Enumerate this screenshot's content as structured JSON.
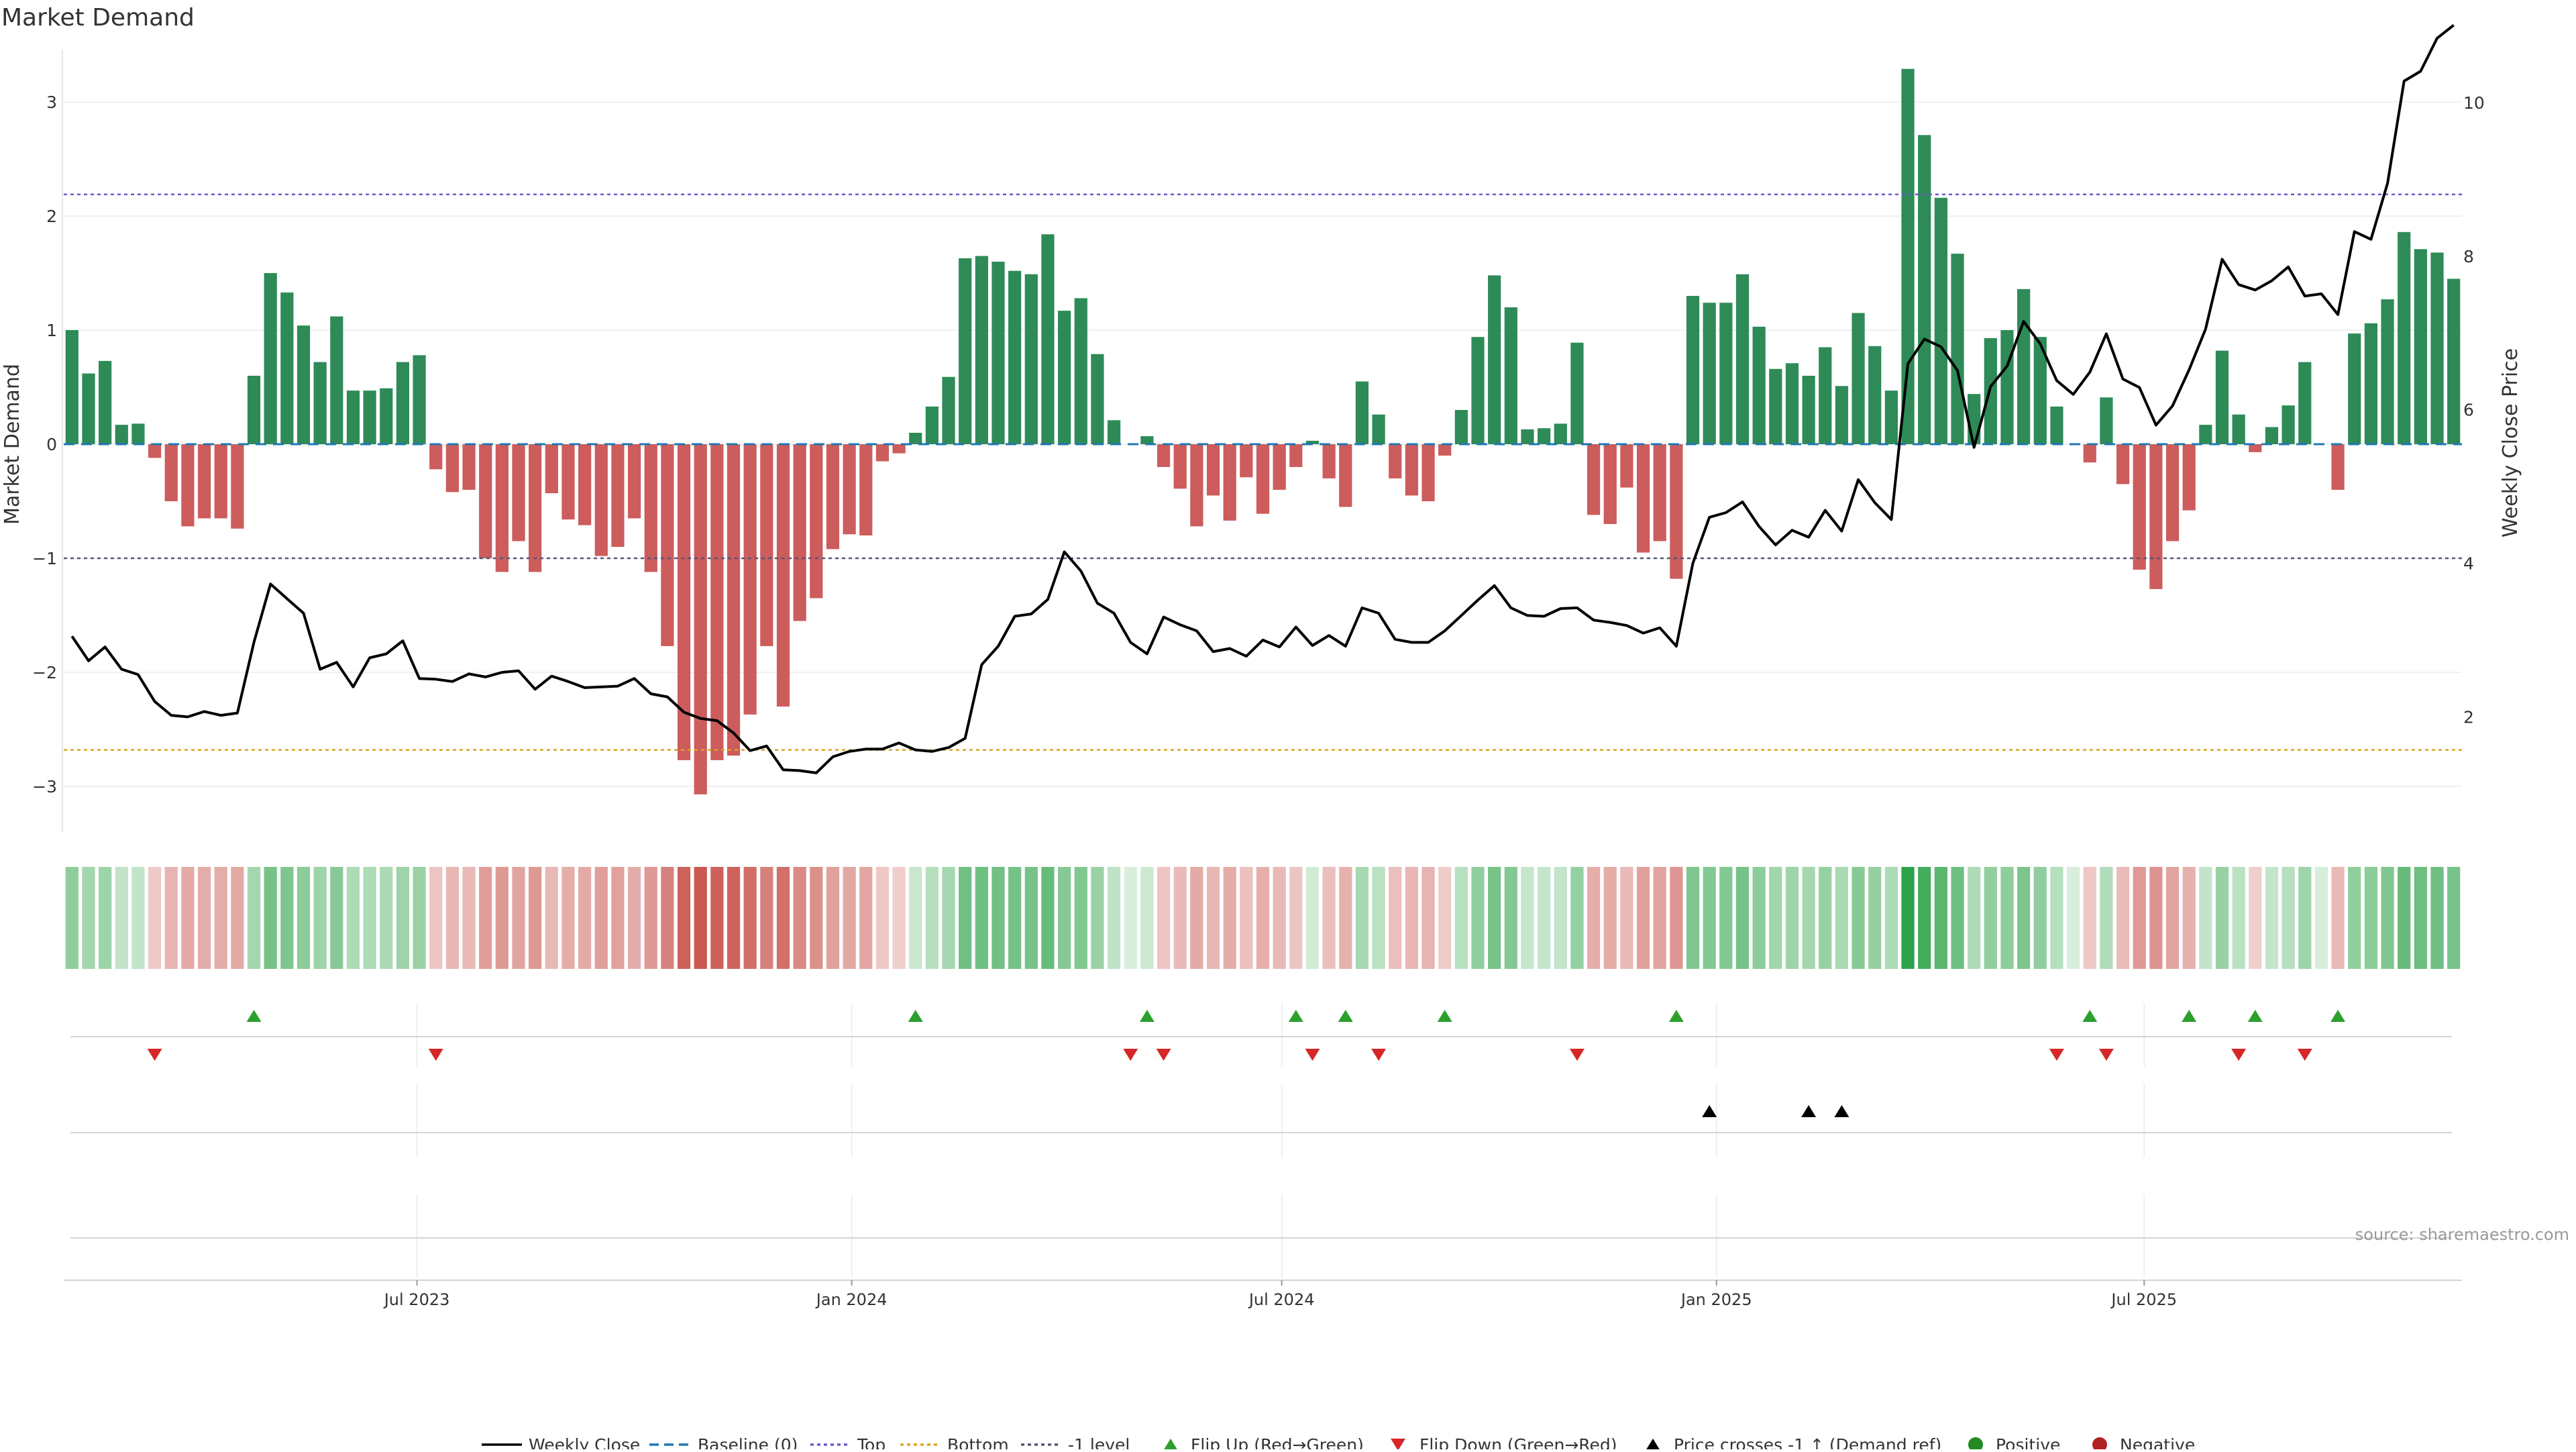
{
  "chart_data": {
    "type": "bar",
    "title": "Market Demand",
    "ylabel_left": "Market Demand",
    "ylabel_right": "Weekly Close Price",
    "ylim_left": [
      -3.4,
      3.6
    ],
    "ylim_right": [
      0.5,
      10.9
    ],
    "yticks_left": [
      3,
      2,
      1,
      0,
      -1,
      -2,
      -3
    ],
    "ytick_labels_left": [
      "3",
      "2",
      "1",
      "0",
      "−1",
      "−2",
      "−3"
    ],
    "yticks_right": [
      10,
      8,
      6,
      4,
      2
    ],
    "ytick_labels_right": [
      "10",
      "8",
      "6",
      "4",
      "2"
    ],
    "levels": {
      "top": 2.19,
      "bottom": -2.68,
      "minus_one": -1.0,
      "baseline": 0
    },
    "x_start": "2023-02-05",
    "week_step_days": 7,
    "x_tick_labels": [
      "Jul 2023",
      "Jan 2024",
      "Jul 2024",
      "Jan 2025",
      "Jul 2025"
    ],
    "x_tick_dates": [
      "2023-07-01",
      "2024-01-01",
      "2024-07-01",
      "2025-01-01",
      "2025-07-01"
    ],
    "demand": [
      1.0,
      0.62,
      0.73,
      0.17,
      0.18,
      -0.12,
      -0.5,
      -0.72,
      -0.65,
      -0.65,
      -0.74,
      0.6,
      1.5,
      1.33,
      1.04,
      0.72,
      1.12,
      0.47,
      0.47,
      0.49,
      0.72,
      0.78,
      -0.22,
      -0.42,
      -0.4,
      -1.0,
      -1.12,
      -0.85,
      -1.12,
      -0.43,
      -0.66,
      -0.71,
      -0.98,
      -0.9,
      -0.65,
      -1.12,
      -1.77,
      -2.77,
      -3.07,
      -2.77,
      -2.73,
      -2.37,
      -1.77,
      -2.3,
      -1.55,
      -1.35,
      -0.92,
      -0.79,
      -0.8,
      -0.15,
      -0.08,
      0.1,
      0.33,
      0.59,
      1.63,
      1.65,
      1.6,
      1.52,
      1.49,
      1.84,
      1.17,
      1.28,
      0.79,
      0.21,
      0.0,
      0.07,
      -0.2,
      -0.39,
      -0.72,
      -0.45,
      -0.67,
      -0.29,
      -0.61,
      -0.4,
      -0.2,
      0.03,
      -0.3,
      -0.55,
      0.55,
      0.26,
      -0.3,
      -0.45,
      -0.5,
      -0.1,
      0.3,
      0.94,
      1.48,
      1.2,
      0.13,
      0.14,
      0.18,
      0.89,
      -0.62,
      -0.7,
      -0.38,
      -0.95,
      -0.85,
      -1.18,
      1.3,
      1.24,
      1.24,
      1.49,
      1.03,
      0.66,
      0.71,
      0.6,
      0.85,
      0.51,
      1.15,
      0.86,
      0.47,
      3.29,
      2.71,
      2.16,
      1.67,
      0.44,
      0.93,
      1.0,
      1.36,
      0.94,
      0.33,
      0.0,
      -0.16,
      0.41,
      -0.35,
      -1.1,
      -1.27,
      -0.85,
      -0.58,
      0.17,
      0.82,
      0.26,
      -0.07,
      0.15,
      0.34,
      0.72,
      0.0,
      -0.4,
      0.97,
      1.06,
      1.27,
      1.86,
      1.71,
      1.68,
      1.45
    ],
    "close": [
      3.05,
      2.73,
      2.91,
      2.62,
      2.55,
      2.2,
      2.02,
      2.0,
      2.07,
      2.02,
      2.05,
      2.97,
      3.73,
      3.54,
      3.35,
      2.62,
      2.71,
      2.39,
      2.77,
      2.82,
      2.99,
      2.5,
      2.49,
      2.46,
      2.56,
      2.52,
      2.58,
      2.6,
      2.36,
      2.53,
      2.46,
      2.38,
      2.39,
      2.4,
      2.5,
      2.3,
      2.26,
      2.06,
      1.98,
      1.95,
      1.79,
      1.56,
      1.62,
      1.31,
      1.3,
      1.27,
      1.48,
      1.55,
      1.58,
      1.58,
      1.66,
      1.57,
      1.55,
      1.6,
      1.72,
      2.68,
      2.92,
      3.31,
      3.34,
      3.53,
      4.15,
      3.9,
      3.48,
      3.35,
      2.97,
      2.82,
      3.3,
      3.2,
      3.12,
      2.85,
      2.89,
      2.79,
      3.0,
      2.91,
      3.17,
      2.93,
      3.06,
      2.92,
      3.42,
      3.35,
      3.01,
      2.97,
      2.97,
      3.12,
      3.32,
      3.52,
      3.71,
      3.42,
      3.32,
      3.31,
      3.41,
      3.42,
      3.26,
      3.23,
      3.19,
      3.09,
      3.16,
      2.92,
      4.0,
      4.6,
      4.66,
      4.8,
      4.48,
      4.24,
      4.43,
      4.34,
      4.69,
      4.42,
      5.09,
      4.79,
      4.57,
      6.6,
      6.92,
      6.82,
      6.51,
      5.51,
      6.3,
      6.57,
      7.15,
      6.86,
      6.38,
      6.2,
      6.49,
      6.99,
      6.4,
      6.29,
      5.8,
      6.05,
      6.52,
      7.05,
      7.96,
      7.63,
      7.56,
      7.68,
      7.86,
      7.48,
      7.51,
      7.24,
      8.32,
      8.22,
      8.95,
      10.28,
      10.41,
      10.84,
      11.01
    ],
    "flip_up_weeks": [
      11,
      51,
      65,
      74,
      77,
      83,
      97,
      122,
      128,
      132,
      137
    ],
    "flip_down_weeks": [
      5,
      22,
      64,
      66,
      75,
      79,
      91,
      120,
      123,
      131,
      135
    ],
    "price_cross_weeks": [
      99,
      105,
      107
    ],
    "source_label": "source: sharemaestro.com",
    "legend": [
      "Weekly Close",
      "Baseline (0)",
      "Top",
      "Bottom",
      "-1 level",
      "Flip Up (Red→Green)",
      "Flip Down (Green→Red)",
      "Price crosses -1 ↑ (Demand ref)",
      "Positive",
      "Negative"
    ],
    "colors": {
      "positive_bar": "#2e8b57",
      "negative_bar": "#cd5c5c",
      "close_line": "#000000",
      "baseline": "#1f77b4",
      "top": "#6a5acd",
      "bottom": "#daa520",
      "minus_one": "#555577",
      "flip_up": "#2ca02c",
      "flip_down": "#d62728",
      "cross_up": "#000000",
      "positive_dot": "#228b22",
      "negative_dot": "#b22222"
    }
  }
}
